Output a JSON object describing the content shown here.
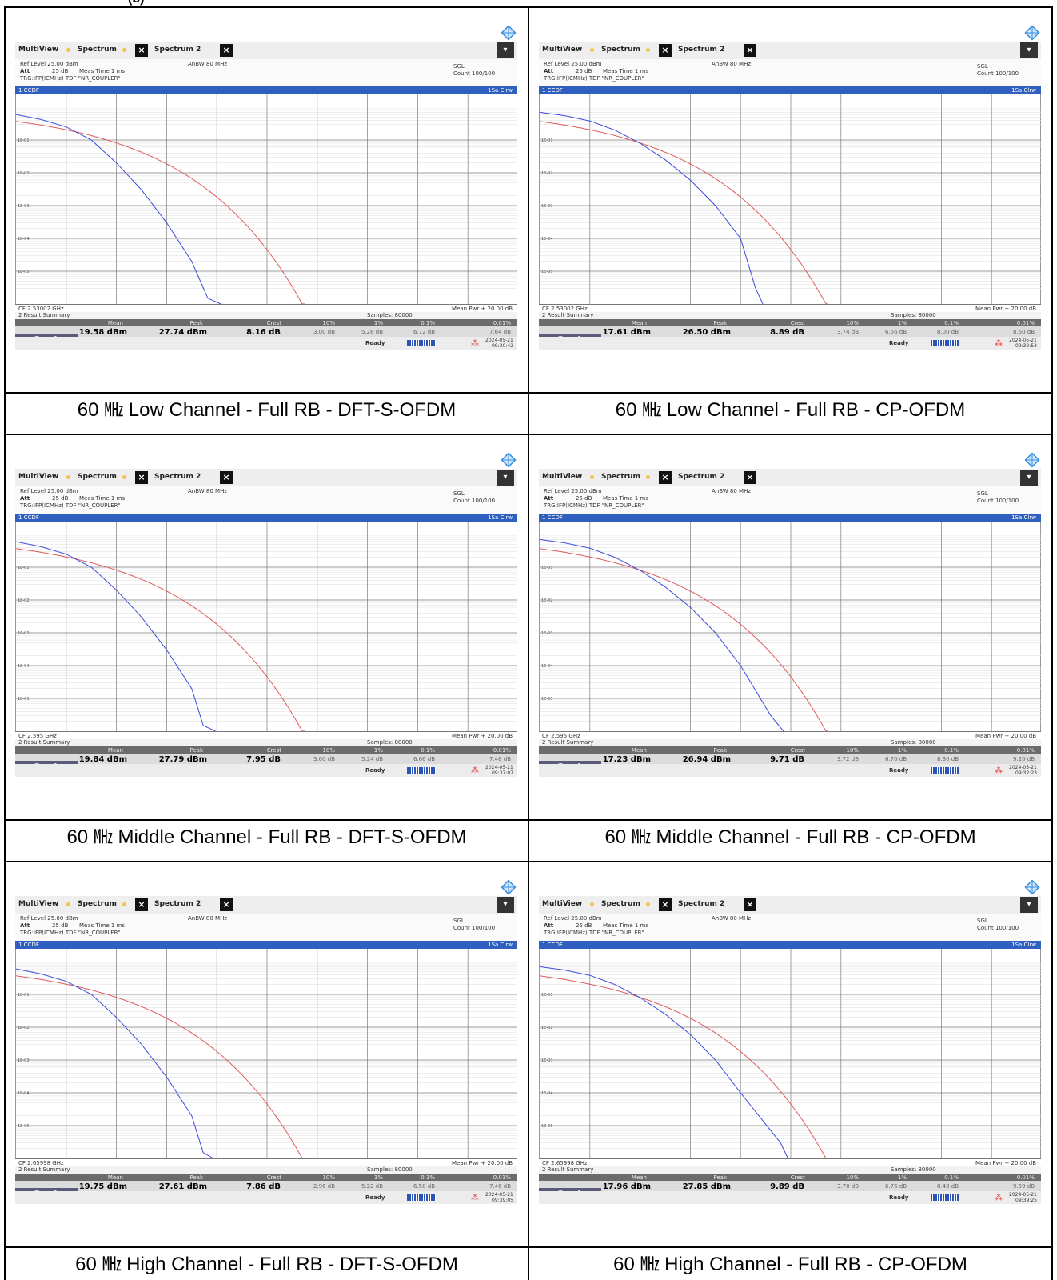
{
  "header_fragment": "(b)",
  "common": {
    "tab_multiview": "MultiView",
    "tab_spectrum": "Spectrum",
    "tab_spectrum2": "Spectrum 2",
    "ref_level": "Ref Level 25.00 dBm",
    "att": "Att",
    "att_value": "25 dB",
    "meas_time": "Meas Time 1 ms",
    "trg": "TRG:IFP(ICMHz) TDF \"NR_COUPLER\"",
    "anbw": "AnBW 80 MHz",
    "sgl": "SGL",
    "count": "Count 100/100",
    "ccdf_label": "1 CCDF",
    "clrw": "1Sa Clrw",
    "mean_pwr": "Mean Pwr + 20.00 dB",
    "result_summary": "2 Result Summary",
    "samples": "Samples: 80000",
    "col_mean": "Mean",
    "col_peak": "Peak",
    "col_crest": "Crest",
    "col_10": "10%",
    "col_1": "1%",
    "col_01": "0.1%",
    "col_001": "0.01%",
    "trace_label": "Trace 1",
    "ready": "Ready",
    "date": "2024-05-21",
    "y_ticks": [
      "1E-01",
      "1E-02",
      "1E-03",
      "1E-04",
      "1E-05"
    ],
    "colors": {
      "trace": "#3a4bdc",
      "gauss": "#e05a5a",
      "header_bar": "#2f5fbf"
    }
  },
  "panels": [
    {
      "cf": "CF 2.53002 GHz",
      "mean": "19.58 dBm",
      "peak": "27.74 dBm",
      "crest": "8.16 dB",
      "p10": "3.00 dB",
      "p1": "5.28 dB",
      "p01": "6.72 dB",
      "p001": "7.64 dB",
      "time": "09:30:42",
      "caption": "60 ㎒ Low Channel - Full RB - DFT-S-OFDM",
      "mode": "dft"
    },
    {
      "cf": "CF 2.53002 GHz",
      "mean": "17.61 dBm",
      "peak": "26.50 dBm",
      "crest": "8.89 dB",
      "p10": "3.74 dB",
      "p1": "6.56 dB",
      "p01": "8.00 dB",
      "p001": "8.60 dB",
      "time": "09:32:53",
      "caption": "60 ㎒ Low Channel - Full RB - CP-OFDM",
      "mode": "cp"
    },
    {
      "cf": "CF 2.595 GHz",
      "mean": "19.84 dBm",
      "peak": "27.79 dBm",
      "crest": "7.95 dB",
      "p10": "3.00 dB",
      "p1": "5.24 dB",
      "p01": "6.66 dB",
      "p001": "7.46 dB",
      "time": "09:37:07",
      "caption": "60 ㎒ Middle Channel - Full RB - DFT-S-OFDM",
      "mode": "dft"
    },
    {
      "cf": "CF 2.595 GHz",
      "mean": "17.23 dBm",
      "peak": "26.94 dBm",
      "crest": "9.71 dB",
      "p10": "3.72 dB",
      "p1": "6.70 dB",
      "p01": "8.30 dB",
      "p001": "9.20 dB",
      "time": "09:32:23",
      "caption": "60 ㎒ Middle Channel - Full RB - CP-OFDM",
      "mode": "cp"
    },
    {
      "cf": "CF 2.65998 GHz",
      "mean": "19.75 dBm",
      "peak": "27.61 dBm",
      "crest": "7.86 dB",
      "p10": "2.96 dB",
      "p1": "5.22 dB",
      "p01": "6.58 dB",
      "p001": "7.46 dB",
      "time": "09:39:05",
      "caption": "60 ㎒ High Channel - Full RB - DFT-S-OFDM",
      "mode": "dft"
    },
    {
      "cf": "CF 2.65998 GHz",
      "mean": "17.96 dBm",
      "peak": "27.85 dBm",
      "crest": "9.89 dB",
      "p10": "3.70 dB",
      "p1": "6.76 dB",
      "p01": "8.48 dB",
      "p001": "9.59 dB",
      "time": "09:39:25",
      "caption": "60 ㎒ High Channel - Full RB - CP-OFDM",
      "mode": "cp"
    }
  ],
  "chart_data": [
    {
      "type": "line",
      "x_unit": "dB",
      "x_range": [
        0,
        20
      ],
      "y_scale": "log",
      "ylim": [
        1e-06,
        1
      ],
      "series": [
        {
          "name": "Trace 1",
          "x": [
            0,
            1,
            2,
            3,
            4,
            5,
            6,
            7,
            7.64,
            8.16
          ],
          "y": [
            0.6,
            0.42,
            0.25,
            0.1,
            0.02,
            0.003,
            0.0003,
            2e-05,
            1.5e-06,
            1e-06
          ]
        }
      ]
    },
    {
      "type": "line",
      "x_unit": "dB",
      "x_range": [
        0,
        20
      ],
      "y_scale": "log",
      "ylim": [
        1e-06,
        1
      ],
      "series": [
        {
          "name": "Trace 1",
          "x": [
            0,
            1,
            2,
            3,
            4,
            5,
            6,
            7,
            8,
            8.6,
            8.89
          ],
          "y": [
            0.7,
            0.55,
            0.38,
            0.2,
            0.08,
            0.025,
            0.006,
            0.001,
            0.0001,
            3e-06,
            1e-06
          ]
        }
      ]
    },
    {
      "type": "line",
      "x_unit": "dB",
      "x_range": [
        0,
        20
      ],
      "y_scale": "log",
      "ylim": [
        1e-06,
        1
      ],
      "series": [
        {
          "name": "Trace 1",
          "x": [
            0,
            1,
            2,
            3,
            4,
            5,
            6,
            7,
            7.46,
            7.95
          ],
          "y": [
            0.6,
            0.42,
            0.25,
            0.1,
            0.02,
            0.003,
            0.0003,
            2e-05,
            1.5e-06,
            1e-06
          ]
        }
      ]
    },
    {
      "type": "line",
      "x_unit": "dB",
      "x_range": [
        0,
        20
      ],
      "y_scale": "log",
      "ylim": [
        1e-06,
        1
      ],
      "series": [
        {
          "name": "Trace 1",
          "x": [
            0,
            1,
            2,
            3,
            4,
            5,
            6,
            7,
            8,
            9.2,
            9.71
          ],
          "y": [
            0.7,
            0.55,
            0.38,
            0.2,
            0.08,
            0.025,
            0.006,
            0.001,
            0.0001,
            3e-06,
            1e-06
          ]
        }
      ]
    },
    {
      "type": "line",
      "x_unit": "dB",
      "x_range": [
        0,
        20
      ],
      "y_scale": "log",
      "ylim": [
        1e-06,
        1
      ],
      "series": [
        {
          "name": "Trace 1",
          "x": [
            0,
            1,
            2,
            3,
            4,
            5,
            6,
            7,
            7.46,
            7.86
          ],
          "y": [
            0.6,
            0.42,
            0.25,
            0.1,
            0.02,
            0.003,
            0.0003,
            2e-05,
            1.5e-06,
            1e-06
          ]
        }
      ]
    },
    {
      "type": "line",
      "x_unit": "dB",
      "x_range": [
        0,
        20
      ],
      "y_scale": "log",
      "ylim": [
        1e-06,
        1
      ],
      "series": [
        {
          "name": "Trace 1",
          "x": [
            0,
            1,
            2,
            3,
            4,
            5,
            6,
            7,
            8,
            9.59,
            9.89
          ],
          "y": [
            0.7,
            0.55,
            0.38,
            0.2,
            0.08,
            0.025,
            0.006,
            0.001,
            0.0001,
            3e-06,
            1e-06
          ]
        }
      ]
    }
  ]
}
